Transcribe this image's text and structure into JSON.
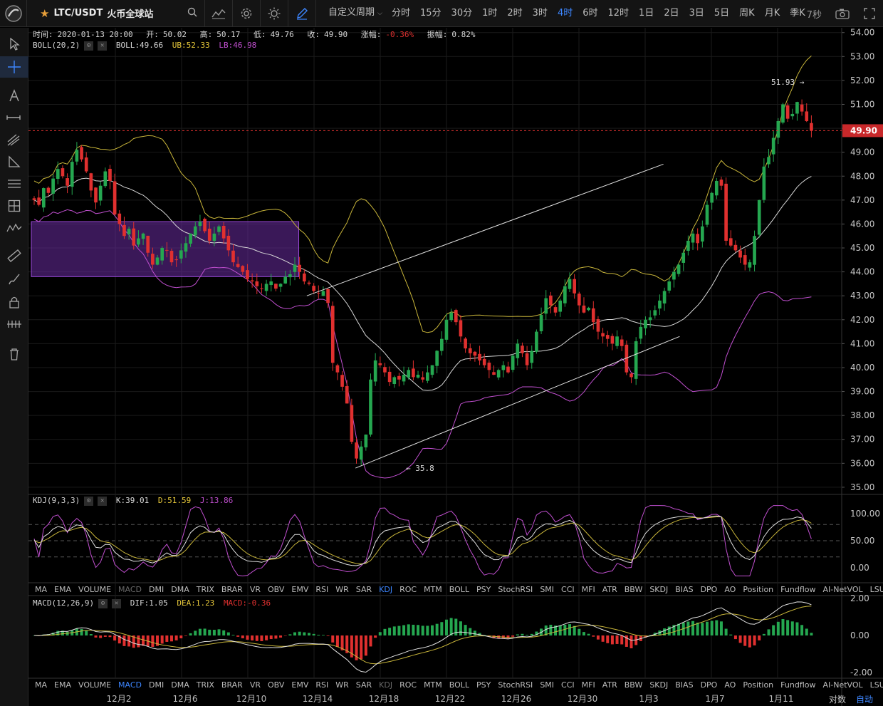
{
  "toolbar": {
    "symbol": "LTC/USDT",
    "exchange": "火币全球站",
    "periods": [
      "分时",
      "15分",
      "30分",
      "1时",
      "2时",
      "3时",
      "4时",
      "6时",
      "12时",
      "1日",
      "2日",
      "3日",
      "5日",
      "周K",
      "月K",
      "季K"
    ],
    "active_period": "4时",
    "custom_period": "自定义周期",
    "right_label": "7秒",
    "accent": "#3d86ff"
  },
  "ohlc": {
    "time_label": "时间:",
    "time": "2020-01-13 20:00",
    "open_label": "开:",
    "open": "50.02",
    "high_label": "高:",
    "high": "50.17",
    "low_label": "低:",
    "low": "49.76",
    "close_label": "收:",
    "close": "49.90",
    "chg_label": "涨幅:",
    "chg": "-0.36%",
    "amp_label": "振幅:",
    "amp": "0.82%"
  },
  "boll_legend": {
    "name": "BOLL(20,2)",
    "mid": "BOLL:49.66",
    "ub": "UB:52.33",
    "lb": "LB:46.98"
  },
  "kdj_legend": {
    "name": "KDJ(9,3,3)",
    "k": "K:39.01",
    "d": "D:51.59",
    "j": "J:13.86"
  },
  "macd_legend": {
    "name": "MACD(12,26,9)",
    "dif": "DIF:1.05",
    "dea": "DEA:1.23",
    "macd": "MACD:-0.36"
  },
  "indicator_tabs": [
    "MA",
    "EMA",
    "VOLUME",
    "MACD",
    "DMI",
    "DMA",
    "TRIX",
    "BRAR",
    "VR",
    "OBV",
    "EMV",
    "RSI",
    "WR",
    "SAR",
    "KDJ",
    "ROC",
    "MTM",
    "BOLL",
    "PSY",
    "StochRSI",
    "SMI",
    "CCI",
    "MFI",
    "ATR",
    "BBW",
    "SKDJ",
    "BIAS",
    "DPO",
    "AO",
    "Position",
    "Fundflow",
    "AI-NetVOL",
    "LSUR"
  ],
  "kdj_tabs_dim": [
    "MACD"
  ],
  "kdj_tabs_active": "KDJ",
  "macd_tabs_dim": [
    "KDJ"
  ],
  "macd_tabs_active": "MACD",
  "bottom": {
    "log_label": "对数",
    "auto_label": "自动"
  },
  "annotations": {
    "high_mark": "51.93 →",
    "low_mark": "← 35.8",
    "price_tag": "49.90"
  },
  "colors": {
    "up": "#25a750",
    "down": "#e0302f",
    "boll_mid": "#d8d8d8",
    "boll_ub": "#c8b53a",
    "boll_lb": "#c04fcf",
    "rect": "#6a2ca0"
  },
  "chart_data": [
    {
      "type": "candlestick",
      "title": "LTC/USDT 4H",
      "x_ticks": [
        "12月2",
        "12月6",
        "12月10",
        "12月14",
        "12月18",
        "12月22",
        "12月26",
        "12月30",
        "1月3",
        "1月7",
        "1月11"
      ],
      "y_ticks": [
        35,
        36,
        37,
        38,
        39,
        40,
        41,
        42,
        43,
        44,
        45,
        46,
        47,
        48,
        49,
        50,
        51,
        52,
        53,
        54
      ],
      "ylim": [
        34.7,
        54.2
      ],
      "close_path": [
        47.0,
        46.8,
        47.5,
        47.3,
        47.9,
        48.3,
        48.0,
        47.6,
        48.6,
        49.1,
        48.7,
        48.2,
        47.4,
        46.9,
        47.6,
        48.2,
        47.8,
        46.4,
        46.0,
        45.5,
        45.8,
        45.1,
        45.4,
        45.6,
        44.8,
        44.3,
        44.6,
        45.0,
        44.9,
        44.4,
        44.5,
        44.9,
        45.2,
        45.6,
        45.9,
        46.1,
        45.7,
        45.3,
        45.6,
        45.9,
        45.4,
        44.9,
        44.4,
        44.2,
        44.0,
        43.7,
        43.6,
        43.4,
        43.3,
        43.5,
        43.6,
        43.3,
        43.5,
        43.8,
        43.9,
        44.3,
        44.0,
        43.6,
        43.5,
        43.2,
        43.1,
        43.2,
        42.7,
        40.2,
        39.8,
        39.2,
        38.5,
        36.9,
        36.2,
        36.7,
        37.2,
        39.5,
        40.3,
        40.1,
        39.8,
        39.4,
        39.6,
        39.5,
        39.7,
        39.9,
        39.6,
        39.7,
        39.5,
        39.8,
        40.1,
        40.7,
        41.2,
        42.0,
        42.3,
        41.9,
        41.3,
        40.8,
        40.6,
        40.5,
        40.3,
        40.1,
        39.9,
        39.7,
        39.9,
        40.1,
        39.8,
        40.5,
        41.0,
        40.6,
        40.1,
        40.7,
        41.5,
        42.2,
        42.9,
        42.6,
        42.3,
        42.8,
        43.4,
        43.7,
        43.1,
        42.6,
        42.3,
        42.5,
        41.9,
        41.5,
        41.3,
        41.2,
        41.0,
        41.3,
        40.9,
        39.8,
        39.6,
        41.1,
        41.7,
        42.0,
        42.1,
        42.4,
        42.8,
        43.2,
        43.6,
        44.0,
        44.3,
        44.8,
        45.3,
        45.6,
        45.2,
        45.9,
        46.8,
        47.3,
        47.8,
        47.6,
        45.3,
        45.1,
        44.9,
        44.6,
        44.3,
        44.4,
        45.5,
        47.0,
        48.4,
        48.8,
        49.6,
        50.3,
        51.0,
        50.4,
        50.6,
        51.1,
        50.7,
        50.3,
        49.9
      ],
      "highlight_box": {
        "x_from": 0,
        "x_to": 0.33,
        "y_from": 43.8,
        "y_to": 46.1
      },
      "channel": {
        "upper": [
          [
            0.34,
            43.0
          ],
          [
            0.78,
            48.5
          ]
        ],
        "lower": [
          [
            0.4,
            35.8
          ],
          [
            0.8,
            41.3
          ]
        ]
      }
    },
    {
      "type": "line",
      "title": "KDJ(9,3,3)",
      "y_ticks": [
        0,
        50,
        100
      ],
      "series": [
        {
          "name": "K"
        },
        {
          "name": "D"
        },
        {
          "name": "J"
        }
      ]
    },
    {
      "type": "bar",
      "title": "MACD(12,26,9)",
      "y_ticks": [
        -2,
        0,
        2
      ],
      "series": [
        {
          "name": "DIF"
        },
        {
          "name": "DEA"
        },
        {
          "name": "MACD"
        }
      ]
    }
  ],
  "y_axis_labels": {
    "main": [
      "54.00",
      "53.00",
      "52.00",
      "51.00",
      "50.00",
      "49.00",
      "48.00",
      "47.00",
      "46.00",
      "45.00",
      "44.00",
      "43.00",
      "42.00",
      "41.00",
      "40.00",
      "39.00",
      "38.00",
      "37.00",
      "36.00",
      "35.00"
    ],
    "kdj": [
      "100.00",
      "50.00",
      "0.00"
    ],
    "macd": [
      "2.00",
      "0.00",
      "-2.00"
    ]
  }
}
